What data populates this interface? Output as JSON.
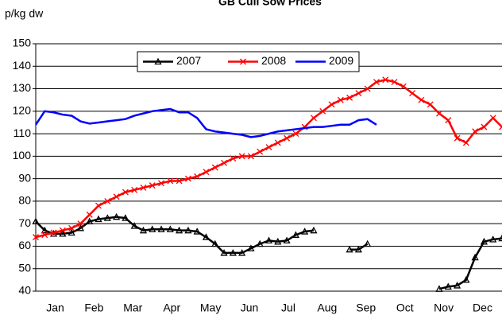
{
  "chart_data": {
    "type": "line",
    "title": "GB Cull Sow Prices",
    "y_label": "p/kg dw",
    "x": [
      1,
      2,
      3,
      4,
      5,
      6,
      7,
      8,
      9,
      10,
      11,
      12,
      13,
      14,
      15,
      16,
      17,
      18,
      19,
      20,
      21,
      22,
      23,
      24,
      25,
      26,
      27,
      28,
      29,
      30,
      31,
      32,
      33,
      34,
      35,
      36,
      37,
      38,
      39,
      40,
      41,
      42,
      43,
      44,
      45,
      46,
      47,
      48,
      49,
      50,
      51,
      52,
      53
    ],
    "xlim": [
      1,
      53
    ],
    "xticks": [
      {
        "value": 3.17,
        "label": "Jan"
      },
      {
        "value": 7.5,
        "label": "Feb"
      },
      {
        "value": 11.83,
        "label": "Mar"
      },
      {
        "value": 16.17,
        "label": "Apr"
      },
      {
        "value": 20.5,
        "label": "May"
      },
      {
        "value": 24.83,
        "label": "Jun"
      },
      {
        "value": 29.17,
        "label": "Jul"
      },
      {
        "value": 33.5,
        "label": "Aug"
      },
      {
        "value": 37.83,
        "label": "Sep"
      },
      {
        "value": 42.17,
        "label": "Oct"
      },
      {
        "value": 46.5,
        "label": "Nov"
      },
      {
        "value": 50.83,
        "label": "Dec"
      }
    ],
    "ylim": [
      40,
      150
    ],
    "yticks": [
      40,
      50,
      60,
      70,
      80,
      90,
      100,
      110,
      120,
      130,
      140,
      150
    ],
    "grid": true,
    "series": [
      {
        "name": "2007",
        "color": "#000000",
        "marker": "triangle",
        "values": [
          71,
          67,
          65.5,
          65.5,
          66,
          68,
          71,
          72,
          72.5,
          73,
          72.5,
          69,
          67,
          67.5,
          67.5,
          67.5,
          67,
          67,
          66.5,
          64,
          61,
          57,
          57,
          57,
          59,
          61,
          62.5,
          62,
          62.5,
          65,
          66.5,
          67,
          null,
          null,
          null,
          58.5,
          58.5,
          61,
          null,
          null,
          null,
          null,
          null,
          null,
          null,
          41,
          42,
          42.5,
          45,
          55,
          62,
          63,
          63.5
        ]
      },
      {
        "name": "2008",
        "color": "#ff0000",
        "marker": "x",
        "values": [
          64,
          65,
          66,
          67,
          68,
          70,
          74,
          78,
          80,
          82,
          84,
          85,
          86,
          87,
          88,
          89,
          89,
          90,
          91,
          93,
          95,
          97,
          99,
          100,
          100,
          102,
          104,
          106,
          108,
          110,
          113,
          117,
          120,
          123,
          125,
          126,
          128,
          130,
          133,
          134,
          133,
          131,
          128,
          125,
          123,
          119,
          116,
          108,
          106,
          111,
          113,
          117,
          113
        ]
      },
      {
        "name": "2009",
        "color": "#0000ff",
        "values": [
          114,
          120,
          119.5,
          118.5,
          118,
          115.5,
          114.5,
          115,
          115.5,
          116,
          116.5,
          118,
          119,
          120,
          120.5,
          121,
          119.5,
          119.5,
          117,
          112,
          111,
          110.5,
          110,
          109.5,
          108.5,
          109,
          110,
          111,
          111.5,
          112,
          112.5,
          113,
          113,
          113.5,
          114,
          114,
          116,
          116.5,
          114,
          null,
          null,
          null,
          null,
          null,
          null,
          null,
          null,
          null,
          null,
          null,
          null,
          null,
          null
        ]
      }
    ]
  }
}
